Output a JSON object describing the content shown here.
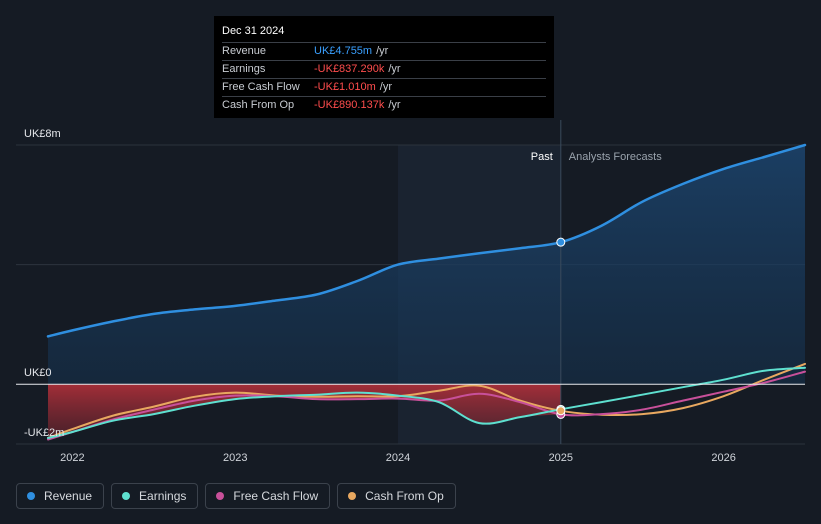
{
  "tooltip": {
    "date": "Dec 31 2024",
    "rows": [
      {
        "label": "Revenue",
        "value": "UK£4.755m",
        "unit": "/yr",
        "color": "#3aa0ff"
      },
      {
        "label": "Earnings",
        "value": "-UK£837.290k",
        "unit": "/yr",
        "color": "#ff4d4d"
      },
      {
        "label": "Free Cash Flow",
        "value": "-UK£1.010m",
        "unit": "/yr",
        "color": "#ff4d4d"
      },
      {
        "label": "Cash From Op",
        "value": "-UK£890.137k",
        "unit": "/yr",
        "color": "#ff4d4d"
      }
    ]
  },
  "legend": [
    {
      "label": "Revenue",
      "color": "#2f8fe0"
    },
    {
      "label": "Earnings",
      "color": "#5ee0d0"
    },
    {
      "label": "Free Cash Flow",
      "color": "#c8509a"
    },
    {
      "label": "Cash From Op",
      "color": "#e8a860"
    }
  ],
  "chart_data": {
    "type": "line",
    "ylim": [
      -2,
      8
    ],
    "y_tick_labels": [
      {
        "value": 8,
        "label": "UK£8m"
      },
      {
        "value": 0,
        "label": "UK£0"
      },
      {
        "value": -2,
        "label": "-UK£2m"
      }
    ],
    "xlim": [
      2021.85,
      2026.5
    ],
    "x_tick_labels": [
      {
        "value": 2022,
        "label": "2022"
      },
      {
        "value": 2023,
        "label": "2023"
      },
      {
        "value": 2024,
        "label": "2024"
      },
      {
        "value": 2025,
        "label": "2025"
      },
      {
        "value": 2026,
        "label": "2026"
      }
    ],
    "divider_x": 2025,
    "highlight_start_x": 2024,
    "past_label": "Past",
    "forecast_label": "Analysts Forecasts",
    "marker_x": 2025,
    "series": [
      {
        "name": "Revenue",
        "color": "#2f8fe0",
        "points": [
          [
            2021.85,
            1.6
          ],
          [
            2022,
            1.8
          ],
          [
            2022.25,
            2.1
          ],
          [
            2022.5,
            2.35
          ],
          [
            2022.75,
            2.5
          ],
          [
            2023,
            2.62
          ],
          [
            2023.25,
            2.8
          ],
          [
            2023.5,
            3.0
          ],
          [
            2023.75,
            3.45
          ],
          [
            2024,
            4.0
          ],
          [
            2024.25,
            4.2
          ],
          [
            2024.5,
            4.38
          ],
          [
            2024.75,
            4.55
          ],
          [
            2025,
            4.75
          ],
          [
            2025.25,
            5.3
          ],
          [
            2025.5,
            6.1
          ],
          [
            2025.75,
            6.7
          ],
          [
            2026,
            7.2
          ],
          [
            2026.25,
            7.6
          ],
          [
            2026.5,
            8.0
          ]
        ]
      },
      {
        "name": "Earnings",
        "color": "#5ee0d0",
        "points": [
          [
            2021.85,
            -1.8
          ],
          [
            2022,
            -1.6
          ],
          [
            2022.25,
            -1.22
          ],
          [
            2022.5,
            -1.0
          ],
          [
            2022.75,
            -0.72
          ],
          [
            2023,
            -0.5
          ],
          [
            2023.25,
            -0.4
          ],
          [
            2023.5,
            -0.35
          ],
          [
            2023.75,
            -0.28
          ],
          [
            2024,
            -0.38
          ],
          [
            2024.25,
            -0.6
          ],
          [
            2024.5,
            -1.3
          ],
          [
            2024.75,
            -1.1
          ],
          [
            2025,
            -0.84
          ],
          [
            2025.25,
            -0.6
          ],
          [
            2025.5,
            -0.35
          ],
          [
            2025.75,
            -0.1
          ],
          [
            2026,
            0.15
          ],
          [
            2026.25,
            0.45
          ],
          [
            2026.5,
            0.55
          ]
        ]
      },
      {
        "name": "Free Cash Flow",
        "color": "#c8509a",
        "points": [
          [
            2021.85,
            -1.85
          ],
          [
            2022,
            -1.6
          ],
          [
            2022.25,
            -1.18
          ],
          [
            2022.5,
            -0.85
          ],
          [
            2022.75,
            -0.55
          ],
          [
            2023,
            -0.38
          ],
          [
            2023.25,
            -0.4
          ],
          [
            2023.5,
            -0.5
          ],
          [
            2023.75,
            -0.5
          ],
          [
            2024,
            -0.48
          ],
          [
            2024.25,
            -0.55
          ],
          [
            2024.5,
            -0.32
          ],
          [
            2024.75,
            -0.6
          ],
          [
            2025,
            -1.01
          ],
          [
            2025.25,
            -1.0
          ],
          [
            2025.5,
            -0.85
          ],
          [
            2025.75,
            -0.55
          ],
          [
            2026,
            -0.25
          ],
          [
            2026.25,
            0.05
          ],
          [
            2026.5,
            0.42
          ]
        ]
      },
      {
        "name": "Cash From Op",
        "color": "#e8a860",
        "points": [
          [
            2021.85,
            -1.8
          ],
          [
            2022,
            -1.5
          ],
          [
            2022.25,
            -1.05
          ],
          [
            2022.5,
            -0.75
          ],
          [
            2022.75,
            -0.42
          ],
          [
            2023,
            -0.28
          ],
          [
            2023.25,
            -0.38
          ],
          [
            2023.5,
            -0.42
          ],
          [
            2023.75,
            -0.4
          ],
          [
            2024,
            -0.4
          ],
          [
            2024.25,
            -0.22
          ],
          [
            2024.5,
            -0.05
          ],
          [
            2024.75,
            -0.55
          ],
          [
            2025,
            -0.89
          ],
          [
            2025.25,
            -1.02
          ],
          [
            2025.5,
            -1.0
          ],
          [
            2025.75,
            -0.8
          ],
          [
            2026,
            -0.4
          ],
          [
            2026.25,
            0.15
          ],
          [
            2026.5,
            0.68
          ]
        ]
      }
    ]
  }
}
